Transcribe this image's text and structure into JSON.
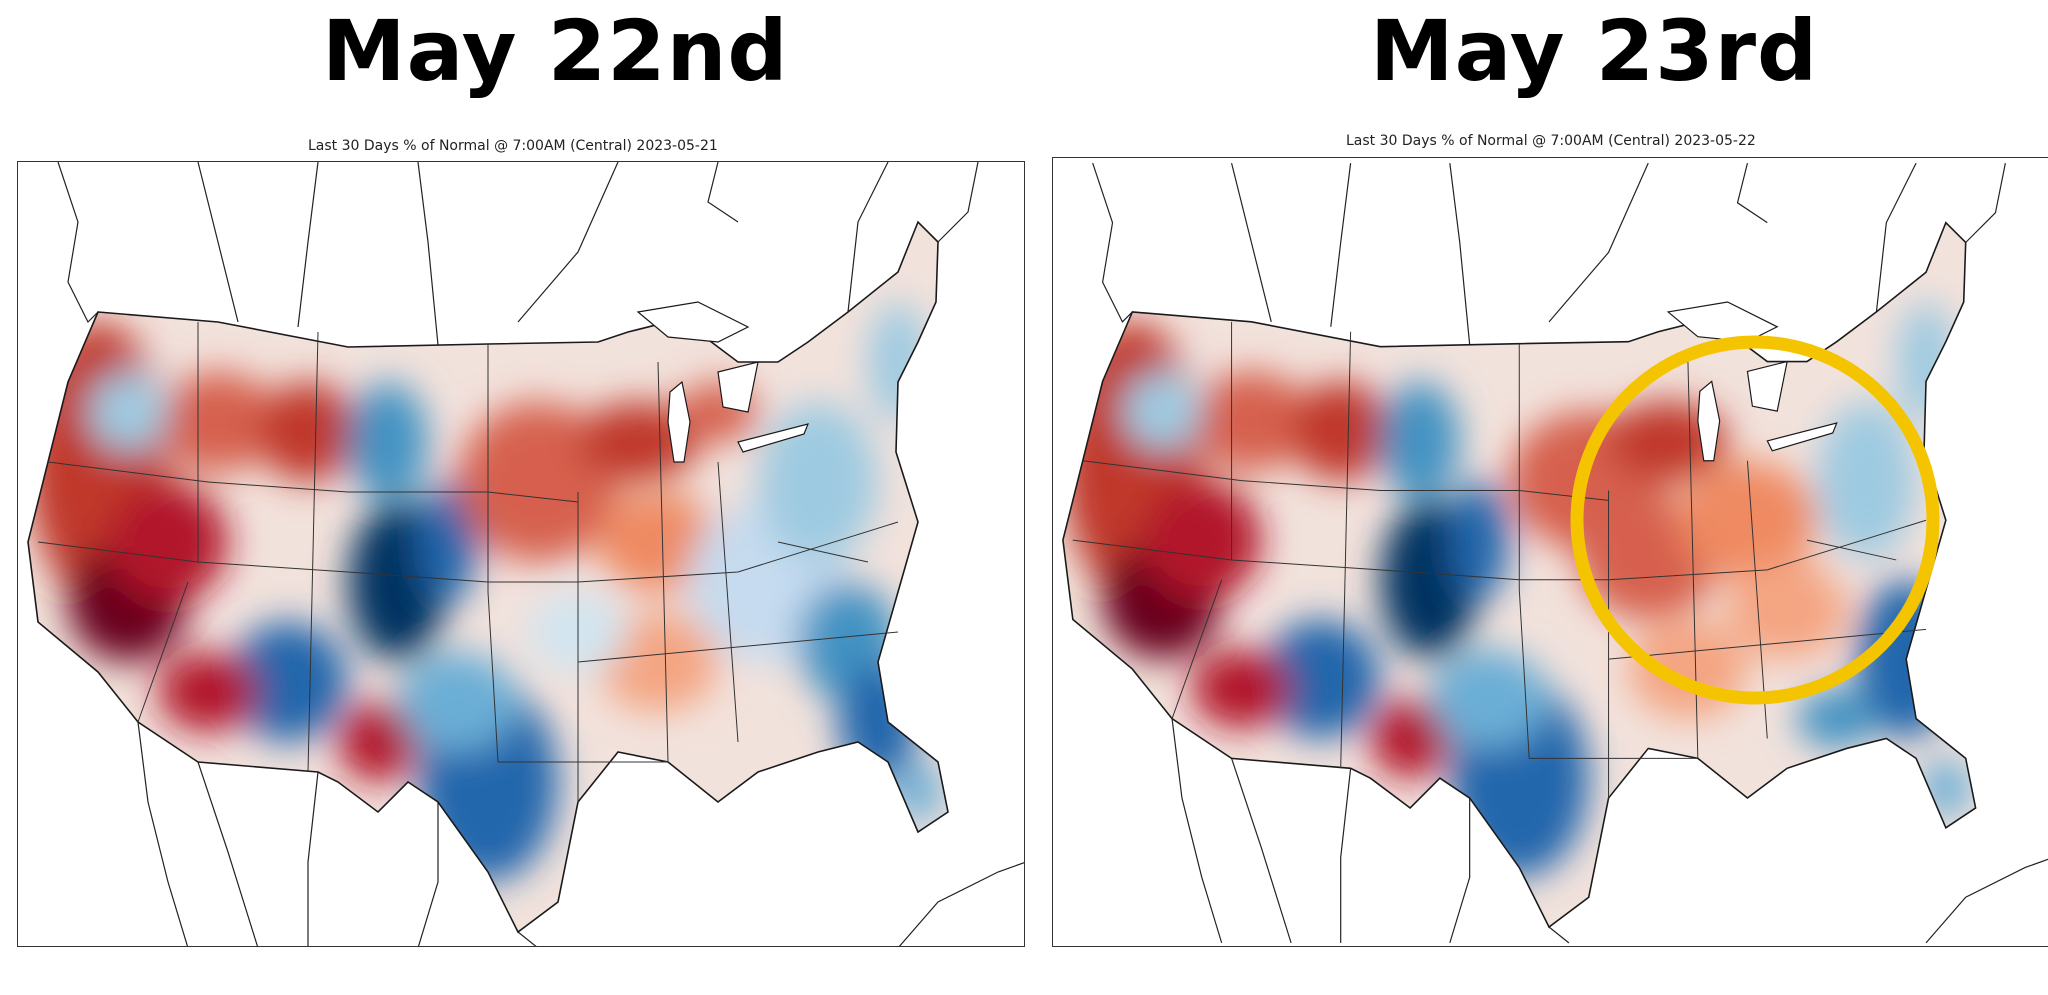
{
  "panels": [
    {
      "heading": "May 22nd",
      "subtitle": "Last 30 Days % of Normal @ 7:00AM (Central) 2023-05-21"
    },
    {
      "heading": "May 23rd",
      "subtitle": "Last 30 Days % of Normal @ 7:00AM (Central) 2023-05-22"
    }
  ],
  "colors": {
    "dry_dark": "#67001f",
    "dry": "#b2182b",
    "dry_light": "#ef8a62",
    "neutral": "#f7f7f7",
    "wet_light": "#9ecae1",
    "wet": "#2166ac",
    "wet_dark": "#053061",
    "highlight_circle": "#f5c400",
    "boundary": "#1a1a1a"
  },
  "annotations": [
    {
      "panel": 1,
      "shape": "circle",
      "color": "#f5c400",
      "region": "Midwest / Ohio Valley"
    }
  ]
}
